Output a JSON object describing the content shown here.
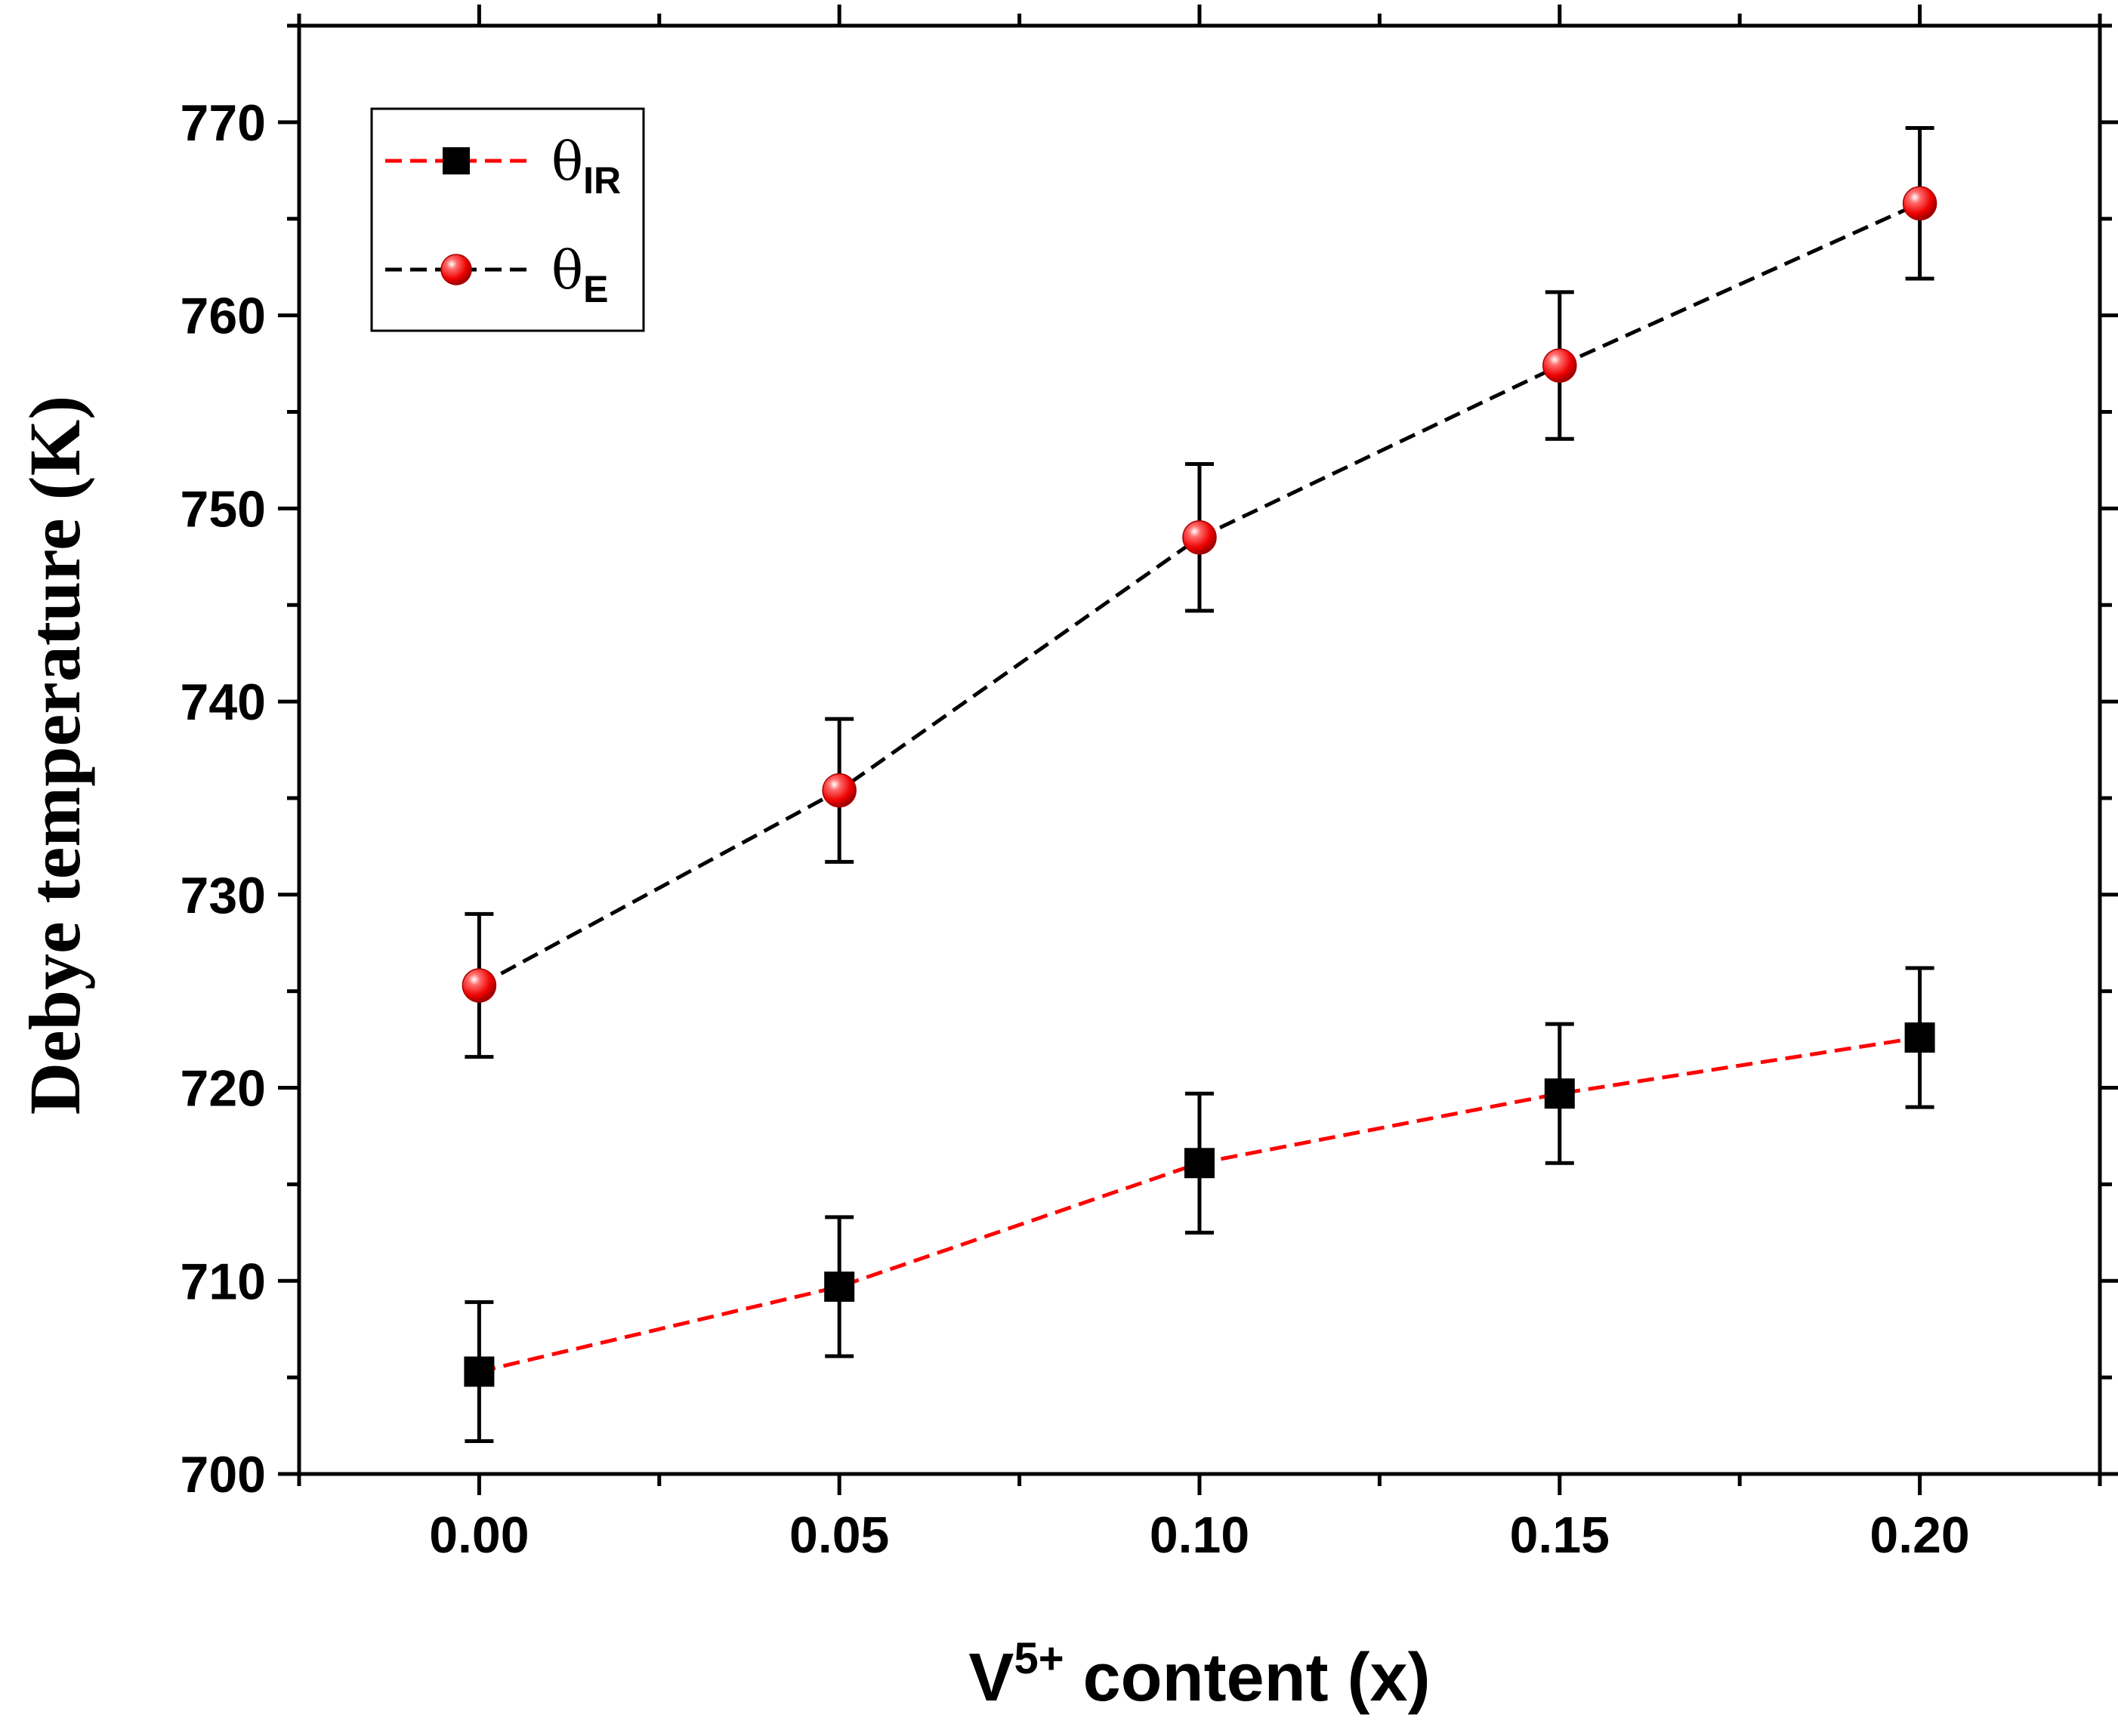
{
  "chart_data": {
    "type": "scatter",
    "title": "",
    "xlabel": {
      "base": "V",
      "sup": "5+",
      "rest": " content (x)"
    },
    "ylabel": "Debye temperature (K)",
    "xlim": [
      -0.025,
      0.225
    ],
    "ylim": [
      700,
      775
    ],
    "x": [
      0.0,
      0.05,
      0.1,
      0.15,
      0.2
    ],
    "xticks": [
      0.0,
      0.05,
      0.1,
      0.15,
      0.2
    ],
    "xtick_labels": [
      "0.00",
      "0.05",
      "0.10",
      "0.15",
      "0.20"
    ],
    "yticks": [
      700,
      710,
      720,
      730,
      740,
      750,
      760,
      770
    ],
    "ytick_labels": [
      "700",
      "710",
      "720",
      "730",
      "740",
      "750",
      "760",
      "770"
    ],
    "legend_position": "top-left",
    "grid": false,
    "series": [
      {
        "name": "θIR",
        "symbol": "θ",
        "subscript": "IR",
        "marker": "square",
        "marker_color": "#000000",
        "line_color": "#ff0000",
        "line_style": "dashed",
        "values": [
          705.3,
          709.7,
          716.1,
          719.7,
          722.6
        ],
        "errors": [
          3.6,
          3.6,
          3.6,
          3.6,
          3.6
        ]
      },
      {
        "name": "θE",
        "symbol": "θ",
        "subscript": "E",
        "marker": "circle",
        "marker_color": "#ff0000",
        "line_color": "#000000",
        "line_style": "dashed",
        "values": [
          725.3,
          735.4,
          748.5,
          757.4,
          765.8
        ],
        "errors": [
          3.7,
          3.7,
          3.8,
          3.8,
          3.9
        ]
      }
    ]
  }
}
